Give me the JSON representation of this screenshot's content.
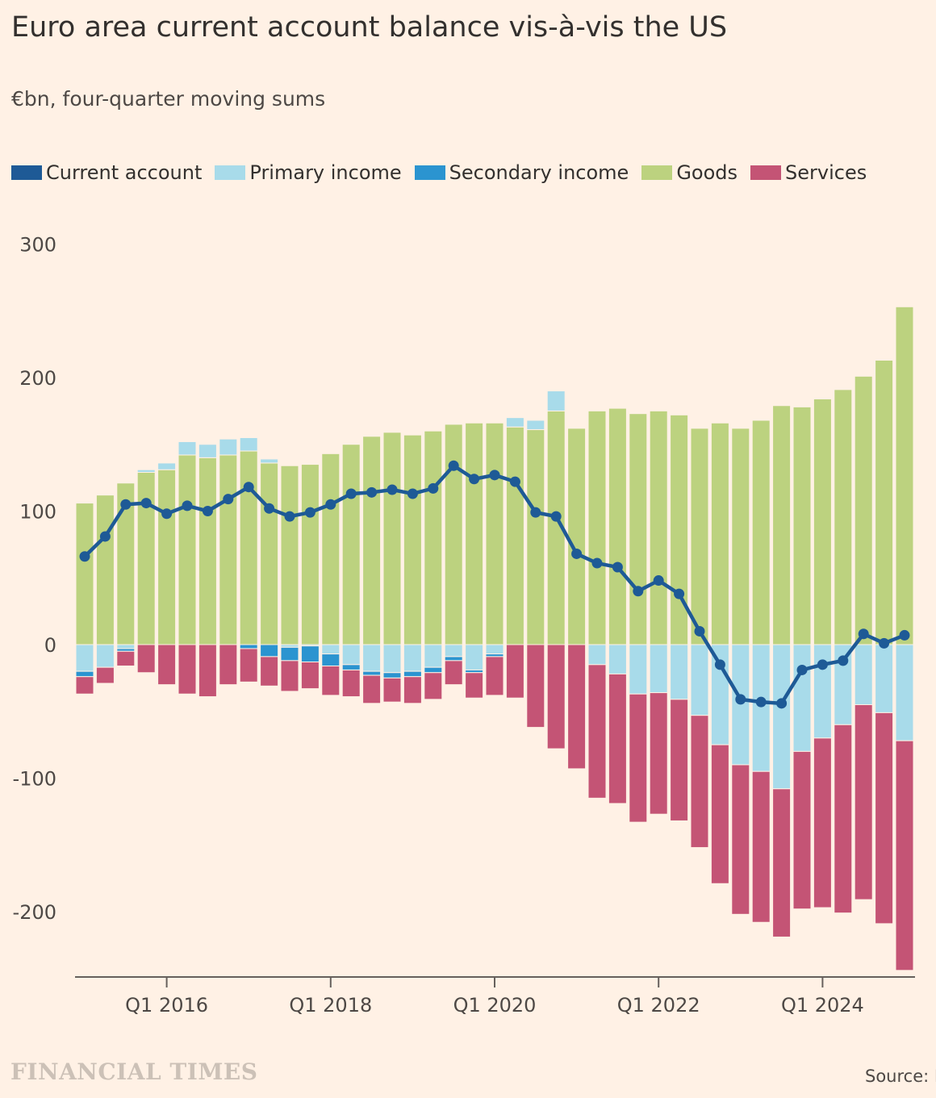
{
  "title": "Euro area current account balance vis-à-vis the US",
  "subtitle": "€bn, four-quarter moving sums",
  "legend": [
    {
      "name": "Current account",
      "color": "#1e5a96"
    },
    {
      "name": "Primary income",
      "color": "#a8dbea"
    },
    {
      "name": "Secondary income",
      "color": "#2b94d0"
    },
    {
      "name": "Goods",
      "color": "#bcd27f"
    },
    {
      "name": "Services",
      "color": "#c45475"
    }
  ],
  "footer": {
    "logo": "FINANCIAL TIMES",
    "source": "Source: E"
  },
  "chart_data": {
    "type": "bar",
    "stacked": true,
    "ylim": [
      -250,
      300
    ],
    "yticks": [
      300,
      200,
      100,
      0,
      -100,
      -200
    ],
    "ytick_labels": [
      "300",
      "200",
      "100",
      "0",
      "-100",
      "-200"
    ],
    "xtick_labels": [
      {
        "label": "Q1 2016",
        "index": 4
      },
      {
        "label": "Q1 2018",
        "index": 12
      },
      {
        "label": "Q1 2020",
        "index": 20
      },
      {
        "label": "Q1 2022",
        "index": 28
      },
      {
        "label": "Q1 2024",
        "index": 36
      }
    ],
    "categories": [
      "Q1 2015",
      "Q2 2015",
      "Q3 2015",
      "Q4 2015",
      "Q1 2016",
      "Q2 2016",
      "Q3 2016",
      "Q4 2016",
      "Q1 2017",
      "Q2 2017",
      "Q3 2017",
      "Q4 2017",
      "Q1 2018",
      "Q2 2018",
      "Q3 2018",
      "Q4 2018",
      "Q1 2019",
      "Q2 2019",
      "Q3 2019",
      "Q4 2019",
      "Q1 2020",
      "Q2 2020",
      "Q3 2020",
      "Q4 2020",
      "Q1 2021",
      "Q2 2021",
      "Q3 2021",
      "Q4 2021",
      "Q1 2022",
      "Q2 2022",
      "Q3 2022",
      "Q4 2022",
      "Q1 2023",
      "Q2 2023",
      "Q3 2023",
      "Q4 2023",
      "Q1 2024",
      "Q2 2024",
      "Q3 2024",
      "Q4 2024",
      "Q1 2025"
    ],
    "series": [
      {
        "name": "Goods",
        "color": "#bcd27f",
        "values": [
          106,
          112,
          121,
          129,
          131,
          142,
          140,
          142,
          145,
          136,
          134,
          135,
          143,
          150,
          156,
          159,
          157,
          160,
          165,
          166,
          166,
          163,
          161,
          175,
          162,
          175,
          177,
          173,
          175,
          172,
          162,
          166,
          162,
          168,
          179,
          178,
          184,
          191,
          201,
          213,
          253
        ]
      },
      {
        "name": "Primary income",
        "color": "#a8dbea",
        "values": [
          -20,
          -17,
          -3,
          2,
          5,
          10,
          10,
          12,
          10,
          3,
          -2,
          -1,
          -7,
          -15,
          -20,
          -21,
          -20,
          -17,
          -9,
          -19,
          -7,
          7,
          7,
          15,
          0,
          -15,
          -22,
          -37,
          -36,
          -41,
          -53,
          -75,
          -90,
          -95,
          -108,
          -80,
          -70,
          -60,
          -45,
          -51,
          -72
        ]
      },
      {
        "name": "Secondary income",
        "color": "#2b94d0",
        "values": [
          -4,
          0,
          -2,
          0,
          0,
          0,
          0,
          0,
          -3,
          -9,
          -10,
          -12,
          -9,
          -4,
          -3,
          -4,
          -4,
          -4,
          -3,
          -2,
          -2,
          0,
          0,
          0,
          0,
          0,
          0,
          0,
          0,
          0,
          0,
          0,
          0,
          0,
          0,
          0,
          0,
          0,
          0,
          0,
          0
        ]
      },
      {
        "name": "Services",
        "color": "#c45475",
        "values": [
          -13,
          -12,
          -11,
          -21,
          -30,
          -37,
          -39,
          -30,
          -25,
          -22,
          -23,
          -20,
          -22,
          -20,
          -21,
          -18,
          -20,
          -20,
          -18,
          -19,
          -29,
          -40,
          -62,
          -78,
          -93,
          -100,
          -97,
          -96,
          -91,
          -91,
          -99,
          -104,
          -112,
          -113,
          -111,
          -118,
          -127,
          -141,
          -146,
          -158,
          -172
        ]
      },
      {
        "name": "Current account",
        "color": "#1e5a96",
        "type": "line",
        "values": [
          66,
          81,
          105,
          106,
          98,
          104,
          100,
          109,
          118,
          102,
          96,
          99,
          105,
          113,
          114,
          116,
          113,
          117,
          134,
          124,
          127,
          122,
          99,
          96,
          68,
          61,
          58,
          40,
          48,
          38,
          10,
          -15,
          -41,
          -43,
          -44,
          -19,
          -15,
          -12,
          8,
          1,
          7
        ]
      }
    ]
  }
}
